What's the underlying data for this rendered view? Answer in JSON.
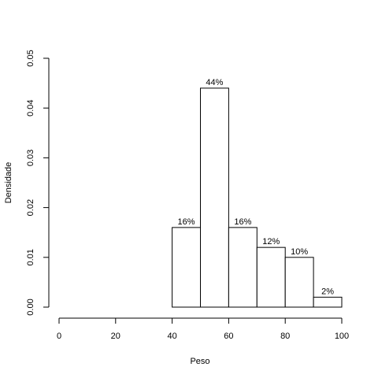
{
  "chart_data": {
    "type": "bar",
    "title": "",
    "xlabel": "Peso",
    "ylabel": "Densidade",
    "xlim": [
      0,
      100
    ],
    "ylim": [
      0,
      0.05
    ],
    "x_ticks": [
      0,
      20,
      40,
      60,
      80,
      100
    ],
    "y_ticks": [
      0.0,
      0.01,
      0.02,
      0.03,
      0.04,
      0.05
    ],
    "y_tick_labels": [
      "0.00",
      "0.01",
      "0.02",
      "0.03",
      "0.04",
      "0.05"
    ],
    "bins": [
      {
        "start": 40,
        "end": 50,
        "density": 0.016,
        "label": "16%"
      },
      {
        "start": 50,
        "end": 60,
        "density": 0.044,
        "label": "44%"
      },
      {
        "start": 60,
        "end": 70,
        "density": 0.016,
        "label": "16%"
      },
      {
        "start": 70,
        "end": 80,
        "density": 0.012,
        "label": "12%"
      },
      {
        "start": 80,
        "end": 90,
        "density": 0.01,
        "label": "10%"
      },
      {
        "start": 90,
        "end": 100,
        "density": 0.002,
        "label": "2%"
      }
    ],
    "grid": false,
    "legend": "none"
  }
}
